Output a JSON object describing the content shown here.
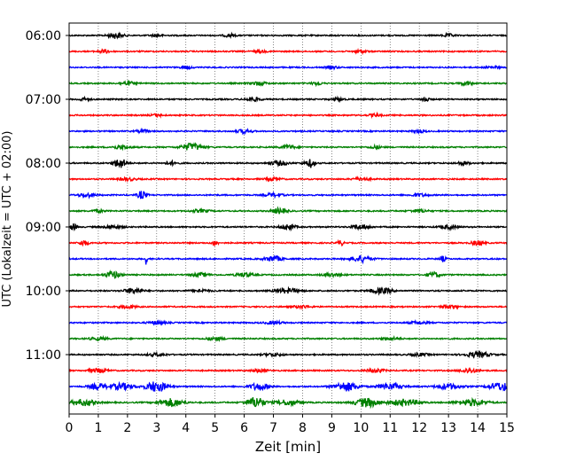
{
  "chart_data": {
    "type": "line",
    "title": "",
    "xlabel": "Zeit  [min]",
    "ylabel": "UTC (Lokalzeit = UTC + 02:00)",
    "xlim": [
      0,
      15
    ],
    "x_ticks": [
      "0",
      "1",
      "2",
      "3",
      "4",
      "5",
      "6",
      "7",
      "8",
      "9",
      "10",
      "11",
      "12",
      "13",
      "14",
      "15"
    ],
    "y_ticks": [
      "06:00",
      "07:00",
      "08:00",
      "09:00",
      "10:00",
      "11:00"
    ],
    "grid": "vertical dotted",
    "legend": "none",
    "colors": [
      "#000000",
      "#ff0000",
      "#0000ff",
      "#008000"
    ],
    "traces": [
      {
        "label": "06:00",
        "color": "#000000",
        "bursts": [
          [
            1.6,
            0.25,
            3
          ],
          [
            3.0,
            0.2,
            1.5
          ],
          [
            5.5,
            0.2,
            1.5
          ],
          [
            13.0,
            0.2,
            1.5
          ]
        ]
      },
      {
        "label": "06:15",
        "color": "#ff0000",
        "bursts": [
          [
            1.2,
            0.2,
            2
          ],
          [
            6.5,
            0.2,
            1.5
          ],
          [
            10.0,
            0.2,
            1.5
          ]
        ]
      },
      {
        "label": "06:30",
        "color": "#0000ff",
        "bursts": [
          [
            4.0,
            0.2,
            1.5
          ],
          [
            9.0,
            0.2,
            1.5
          ],
          [
            14.5,
            0.2,
            1.5
          ]
        ]
      },
      {
        "label": "06:45",
        "color": "#008000",
        "bursts": [
          [
            2.0,
            0.25,
            2
          ],
          [
            6.5,
            0.25,
            2
          ],
          [
            8.5,
            0.2,
            1.5
          ],
          [
            13.6,
            0.2,
            2
          ]
        ]
      },
      {
        "label": "07:00",
        "color": "#000000",
        "bursts": [
          [
            0.5,
            0.2,
            1.5
          ],
          [
            6.3,
            0.25,
            2
          ],
          [
            9.2,
            0.2,
            1.5
          ],
          [
            12.2,
            0.1,
            4
          ]
        ]
      },
      {
        "label": "07:15",
        "color": "#ff0000",
        "bursts": [
          [
            3.0,
            0.2,
            1.5
          ],
          [
            10.5,
            0.2,
            1.5
          ]
        ]
      },
      {
        "label": "07:30",
        "color": "#0000ff",
        "bursts": [
          [
            2.5,
            0.2,
            1.5
          ],
          [
            6.0,
            0.25,
            2
          ],
          [
            12.0,
            0.2,
            1.5
          ]
        ]
      },
      {
        "label": "07:45",
        "color": "#008000",
        "bursts": [
          [
            1.8,
            0.3,
            2
          ],
          [
            4.2,
            0.35,
            4
          ],
          [
            7.5,
            0.25,
            2
          ],
          [
            10.5,
            0.2,
            1.5
          ]
        ]
      },
      {
        "label": "08:00",
        "color": "#000000",
        "bursts": [
          [
            1.75,
            0.2,
            5.5
          ],
          [
            3.5,
            0.2,
            2
          ],
          [
            7.2,
            0.3,
            2.5
          ],
          [
            8.2,
            0.2,
            2
          ],
          [
            8.3,
            0.1,
            3
          ],
          [
            13.5,
            0.2,
            2
          ]
        ]
      },
      {
        "label": "08:15",
        "color": "#ff0000",
        "bursts": [
          [
            2.0,
            0.3,
            1.5
          ],
          [
            7.0,
            0.25,
            1.5
          ],
          [
            10.0,
            0.3,
            1.5
          ]
        ]
      },
      {
        "label": "08:30",
        "color": "#0000ff",
        "bursts": [
          [
            0.6,
            0.3,
            2
          ],
          [
            2.5,
            0.15,
            4.5
          ],
          [
            7.0,
            0.3,
            2
          ],
          [
            12.0,
            0.3,
            1.5
          ]
        ]
      },
      {
        "label": "08:45",
        "color": "#008000",
        "bursts": [
          [
            1.0,
            0.2,
            1.5
          ],
          [
            4.5,
            0.3,
            1.5
          ],
          [
            7.2,
            0.25,
            3
          ],
          [
            12.0,
            0.3,
            1.5
          ]
        ]
      },
      {
        "label": "09:00",
        "color": "#000000",
        "bursts": [
          [
            0.15,
            0.1,
            4
          ],
          [
            1.5,
            0.3,
            2
          ],
          [
            7.5,
            0.25,
            3
          ],
          [
            10.0,
            0.3,
            2.5
          ],
          [
            13.0,
            0.3,
            2
          ]
        ]
      },
      {
        "label": "09:15",
        "color": "#ff0000",
        "bursts": [
          [
            0.5,
            0.15,
            3
          ],
          [
            5.0,
            0.1,
            3
          ],
          [
            9.3,
            0.1,
            3
          ],
          [
            14.0,
            0.2,
            3
          ]
        ]
      },
      {
        "label": "09:30",
        "color": "#0000ff",
        "bursts": [
          [
            2.65,
            0.03,
            8
          ],
          [
            7.0,
            0.3,
            3
          ],
          [
            10.0,
            0.35,
            3.5
          ],
          [
            12.8,
            0.1,
            3
          ]
        ]
      },
      {
        "label": "09:45",
        "color": "#008000",
        "bursts": [
          [
            1.5,
            0.25,
            4
          ],
          [
            4.5,
            0.3,
            2
          ],
          [
            6.0,
            0.3,
            2
          ],
          [
            9.0,
            0.3,
            2
          ],
          [
            12.5,
            0.2,
            3
          ]
        ]
      },
      {
        "label": "10:00",
        "color": "#000000",
        "bursts": [
          [
            2.2,
            0.3,
            3
          ],
          [
            4.5,
            0.3,
            1.5
          ],
          [
            7.5,
            0.4,
            2.5
          ],
          [
            10.7,
            0.35,
            3
          ]
        ]
      },
      {
        "label": "10:15",
        "color": "#ff0000",
        "bursts": [
          [
            2.0,
            0.3,
            1.5
          ],
          [
            8.0,
            0.3,
            1.5
          ],
          [
            13.0,
            0.3,
            1.5
          ]
        ]
      },
      {
        "label": "10:30",
        "color": "#0000ff",
        "bursts": [
          [
            3.0,
            0.3,
            1.5
          ],
          [
            7.0,
            0.3,
            1.5
          ],
          [
            12.0,
            0.3,
            1.5
          ]
        ]
      },
      {
        "label": "10:45",
        "color": "#008000",
        "bursts": [
          [
            1.0,
            0.3,
            1.5
          ],
          [
            5.0,
            0.3,
            1.5
          ],
          [
            11.0,
            0.3,
            1.5
          ]
        ]
      },
      {
        "label": "11:00",
        "color": "#000000",
        "bursts": [
          [
            3.0,
            0.3,
            1.5
          ],
          [
            7.0,
            0.3,
            1.5
          ],
          [
            12.0,
            0.3,
            1.5
          ],
          [
            14.0,
            0.4,
            3
          ]
        ]
      },
      {
        "label": "11:15",
        "color": "#ff0000",
        "bursts": [
          [
            1.0,
            0.3,
            2
          ],
          [
            6.5,
            0.3,
            1.5
          ],
          [
            10.5,
            0.3,
            2
          ],
          [
            13.7,
            0.3,
            2.5
          ]
        ]
      },
      {
        "label": "11:30",
        "color": "#0000ff",
        "bursts": [
          [
            1.0,
            0.3,
            3
          ],
          [
            1.8,
            0.4,
            3.5
          ],
          [
            3.0,
            0.35,
            6
          ],
          [
            6.5,
            0.3,
            4
          ],
          [
            9.5,
            0.4,
            5
          ],
          [
            11.0,
            0.4,
            3.5
          ],
          [
            13.0,
            0.4,
            3
          ],
          [
            14.8,
            0.4,
            4.5
          ]
        ]
      },
      {
        "label": "11:45",
        "color": "#008000",
        "bursts": [
          [
            0.5,
            0.4,
            3.5
          ],
          [
            3.5,
            0.4,
            4.5
          ],
          [
            6.4,
            0.3,
            6
          ],
          [
            7.5,
            0.4,
            3
          ],
          [
            10.2,
            0.4,
            5
          ],
          [
            11.5,
            0.5,
            3.5
          ],
          [
            13.8,
            0.5,
            3.5
          ]
        ]
      }
    ]
  }
}
